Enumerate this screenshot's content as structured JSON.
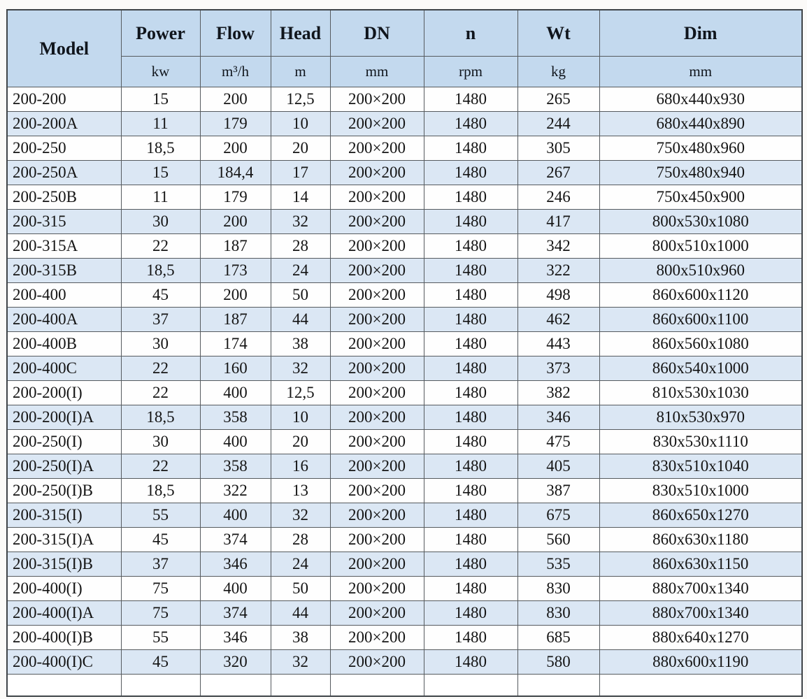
{
  "table": {
    "name": "pump-specification-table",
    "columns": [
      {
        "key": "model",
        "label": "Model",
        "unit": ""
      },
      {
        "key": "power",
        "label": "Power",
        "unit": "kw"
      },
      {
        "key": "flow",
        "label": "Flow",
        "unit": "m³/h"
      },
      {
        "key": "head",
        "label": "Head",
        "unit": "m"
      },
      {
        "key": "dn",
        "label": "DN",
        "unit": "mm"
      },
      {
        "key": "n",
        "label": "n",
        "unit": "rpm"
      },
      {
        "key": "wt",
        "label": "Wt",
        "unit": "kg"
      },
      {
        "key": "dim",
        "label": "Dim",
        "unit": "mm"
      }
    ],
    "rows": [
      [
        "200-200",
        "15",
        "200",
        "12,5",
        "200×200",
        "1480",
        "265",
        "680x440x930"
      ],
      [
        "200-200A",
        "11",
        "179",
        "10",
        "200×200",
        "1480",
        "244",
        "680x440x890"
      ],
      [
        "200-250",
        "18,5",
        "200",
        "20",
        "200×200",
        "1480",
        "305",
        "750x480x960"
      ],
      [
        "200-250A",
        "15",
        "184,4",
        "17",
        "200×200",
        "1480",
        "267",
        "750x480x940"
      ],
      [
        "200-250B",
        "11",
        "179",
        "14",
        "200×200",
        "1480",
        "246",
        "750x450x900"
      ],
      [
        "200-315",
        "30",
        "200",
        "32",
        "200×200",
        "1480",
        "417",
        "800x530x1080"
      ],
      [
        "200-315A",
        "22",
        "187",
        "28",
        "200×200",
        "1480",
        "342",
        "800x510x1000"
      ],
      [
        "200-315B",
        "18,5",
        "173",
        "24",
        "200×200",
        "1480",
        "322",
        "800x510x960"
      ],
      [
        "200-400",
        "45",
        "200",
        "50",
        "200×200",
        "1480",
        "498",
        "860x600x1120"
      ],
      [
        "200-400A",
        "37",
        "187",
        "44",
        "200×200",
        "1480",
        "462",
        "860x600x1100"
      ],
      [
        "200-400B",
        "30",
        "174",
        "38",
        "200×200",
        "1480",
        "443",
        "860x560x1080"
      ],
      [
        "200-400C",
        "22",
        "160",
        "32",
        "200×200",
        "1480",
        "373",
        "860x540x1000"
      ],
      [
        "200-200(I)",
        "22",
        "400",
        "12,5",
        "200×200",
        "1480",
        "382",
        "810x530x1030"
      ],
      [
        "200-200(I)A",
        "18,5",
        "358",
        "10",
        "200×200",
        "1480",
        "346",
        "810x530x970"
      ],
      [
        "200-250(I)",
        "30",
        "400",
        "20",
        "200×200",
        "1480",
        "475",
        "830x530x1110"
      ],
      [
        "200-250(I)A",
        "22",
        "358",
        "16",
        "200×200",
        "1480",
        "405",
        "830x510x1040"
      ],
      [
        "200-250(I)B",
        "18,5",
        "322",
        "13",
        "200×200",
        "1480",
        "387",
        "830x510x1000"
      ],
      [
        "200-315(I)",
        "55",
        "400",
        "32",
        "200×200",
        "1480",
        "675",
        "860x650x1270"
      ],
      [
        "200-315(I)A",
        "45",
        "374",
        "28",
        "200×200",
        "1480",
        "560",
        "860x630x1180"
      ],
      [
        "200-315(I)B",
        "37",
        "346",
        "24",
        "200×200",
        "1480",
        "535",
        "860x630x1150"
      ],
      [
        "200-400(I)",
        "75",
        "400",
        "50",
        "200×200",
        "1480",
        "830",
        "880x700x1340"
      ],
      [
        "200-400(I)A",
        "75",
        "374",
        "44",
        "200×200",
        "1480",
        "830",
        "880x700x1340"
      ],
      [
        "200-400(I)B",
        "55",
        "346",
        "38",
        "200×200",
        "1480",
        "685",
        "880x640x1270"
      ],
      [
        "200-400(I)C",
        "45",
        "320",
        "32",
        "200×200",
        "1480",
        "580",
        "880x600x1190"
      ]
    ]
  },
  "colors": {
    "header_bg": "#c3d9ee",
    "row_alt_bg": "#dbe7f4",
    "row_bg": "#fefefe",
    "border_inner": "#565b5f",
    "border_outer": "#3f4448",
    "text": "#141414"
  }
}
